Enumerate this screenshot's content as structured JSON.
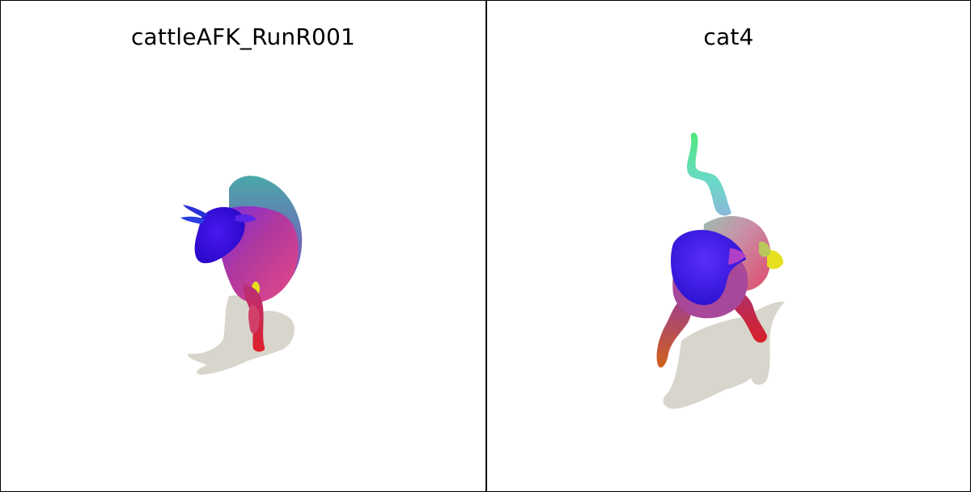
{
  "panels": [
    {
      "title": "cattleAFK_RunR001",
      "subject": "cow-mesh-render"
    },
    {
      "title": "cat4",
      "subject": "cat-mesh-render"
    }
  ],
  "colors": {
    "background": "#ffffff",
    "border": "#000000",
    "shadow": "#d8d5cc",
    "mesh_head": "#3a10e8",
    "mesh_body": "#c23a9a",
    "mesh_legs": "#d8202a",
    "mesh_tail": "#5ee08a",
    "mesh_accent": "#e6e020"
  }
}
